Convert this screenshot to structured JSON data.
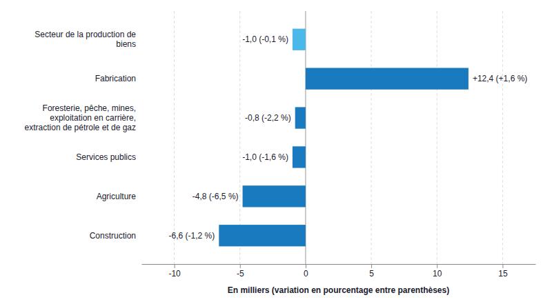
{
  "chart_data": {
    "type": "bar",
    "orientation": "horizontal",
    "categories": [
      "Construction",
      "Agriculture",
      "Services publics",
      "Foresterie, pêche, mines,\nexploitation en carrière,\nextraction de pétrole et de gaz",
      "Fabrication",
      "Secteur de la production de\nbiens"
    ],
    "values": [
      -6.6,
      -4.8,
      -1.0,
      -0.8,
      12.4,
      -1.0
    ],
    "value_labels": [
      "-6,6 (-1,2 %)",
      "-4,8 (-6,5 %)",
      "-1,0 (-1,6 %)",
      "-0,8 (-2,2 %)",
      "+12,4 (+1,6 %)",
      "-1,0 (-0,1 %)"
    ],
    "data_labels": true,
    "colors": [
      "#1a7abf",
      "#1a7abf",
      "#1a7abf",
      "#1a7abf",
      "#1a7abf",
      "#4ab8e8"
    ],
    "xlabel": "En milliers (variation en pourcentage entre parenthèses)",
    "xlim": [
      -12.5,
      17.5
    ],
    "xticks": [
      -10,
      -5,
      0,
      5,
      10,
      15
    ],
    "grid": true
  }
}
